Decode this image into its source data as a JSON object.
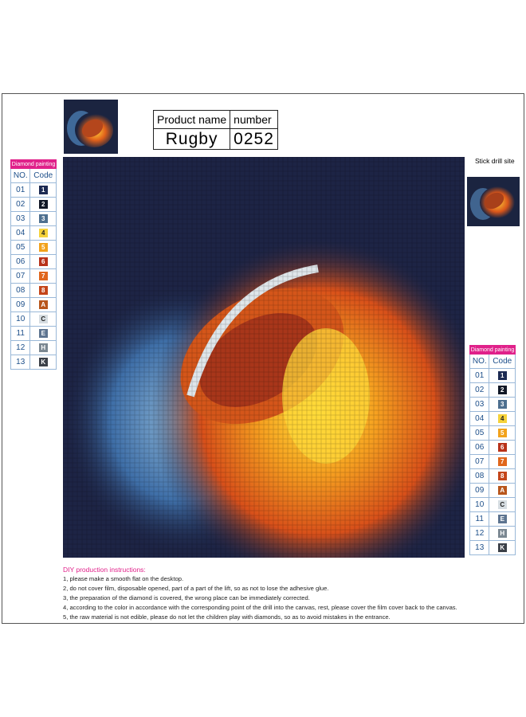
{
  "product": {
    "name_header": "Product name",
    "number_header": "number",
    "name": "Rugby",
    "number": "0252"
  },
  "stick_label": "Stick drill site",
  "legend_left": {
    "title": "Diamond painting",
    "headers": [
      "NO.",
      "Code"
    ],
    "rows": [
      [
        "01",
        "1"
      ],
      [
        "02",
        "2"
      ],
      [
        "03",
        "3"
      ],
      [
        "04",
        "4"
      ],
      [
        "05",
        "5"
      ],
      [
        "06",
        "6"
      ],
      [
        "07",
        "7"
      ],
      [
        "08",
        "8"
      ],
      [
        "09",
        "A"
      ],
      [
        "10",
        "C"
      ],
      [
        "11",
        "E"
      ],
      [
        "12",
        "H"
      ],
      [
        "13",
        "K"
      ]
    ]
  },
  "legend_right": {
    "title": "Diamond painting",
    "headers": [
      "NO.",
      "Code"
    ],
    "rows": [
      [
        "01",
        "1"
      ],
      [
        "02",
        "2"
      ],
      [
        "03",
        "3"
      ],
      [
        "04",
        "4"
      ],
      [
        "05",
        "5"
      ],
      [
        "06",
        "6"
      ],
      [
        "07",
        "7"
      ],
      [
        "08",
        "8"
      ],
      [
        "09",
        "A"
      ],
      [
        "10",
        "C"
      ],
      [
        "11",
        "E"
      ],
      [
        "12",
        "H"
      ],
      [
        "13",
        "K"
      ]
    ]
  },
  "instructions": {
    "title": "DIY production instructions:",
    "steps": [
      "1, please make a smooth flat on the desktop.",
      "2, do not cover film, disposable opened, part of a part of the lift, so as not to lose the adhesive glue.",
      "3, the preparation of the diamond is covered, the wrong place can be immediately corrected.",
      "4, according to the color in accordance with the corresponding point of the drill into the canvas, rest, please cover the film cover back to the canvas.",
      "5, the raw material is not edible, please do not let the children play with diamonds, so as to avoid mistakes in the entrance."
    ]
  }
}
